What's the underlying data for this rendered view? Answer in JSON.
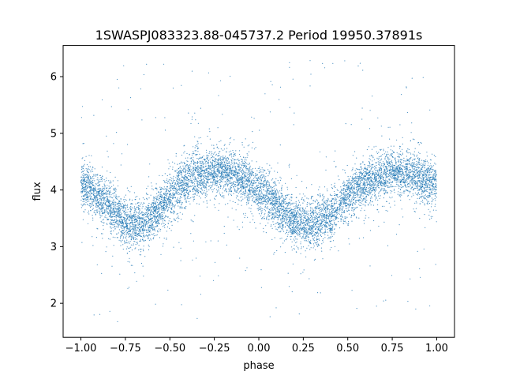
{
  "chart_data": {
    "type": "scatter",
    "title": "1SWASPJ083323.88-045737.2 Period 19950.37891s",
    "xlabel": "phase",
    "ylabel": "flux",
    "xlim": [
      -1.1,
      1.1
    ],
    "ylim": [
      1.4,
      6.55
    ],
    "xticks": [
      -1.0,
      -0.75,
      -0.5,
      -0.25,
      0.0,
      0.25,
      0.5,
      0.75,
      1.0
    ],
    "xtick_labels": [
      "−1.00",
      "−0.75",
      "−0.50",
      "−0.25",
      "0.00",
      "0.25",
      "0.50",
      "0.75",
      "1.00"
    ],
    "yticks": [
      2,
      3,
      4,
      5,
      6
    ],
    "ytick_labels": [
      "2",
      "3",
      "4",
      "5",
      "6"
    ],
    "grid": false,
    "legend": "none",
    "marker_color": "#1f77b4",
    "series": [
      {
        "phase": [
          -1.0,
          -0.95,
          -0.9,
          -0.85,
          -0.8,
          -0.75,
          -0.7,
          -0.65,
          -0.6,
          -0.55,
          -0.5,
          -0.45,
          -0.4,
          -0.35,
          -0.3,
          -0.25,
          -0.2,
          -0.15,
          -0.1,
          -0.05,
          0.0,
          0.05,
          0.1,
          0.15,
          0.2,
          0.25,
          0.3,
          0.35,
          0.4,
          0.45,
          0.5,
          0.55,
          0.6,
          0.65,
          0.7,
          0.75,
          0.8,
          0.85,
          0.9,
          0.95,
          1.0
        ],
        "flux_mean": [
          4.1,
          4.0,
          3.88,
          3.72,
          3.58,
          3.45,
          3.38,
          3.4,
          3.52,
          3.7,
          3.88,
          4.05,
          4.18,
          4.26,
          4.3,
          4.32,
          4.33,
          4.3,
          4.22,
          4.12,
          4.0,
          3.88,
          3.72,
          3.58,
          3.45,
          3.4,
          3.38,
          3.45,
          3.58,
          3.73,
          3.88,
          4.02,
          4.14,
          4.22,
          4.27,
          4.3,
          4.31,
          4.28,
          4.22,
          4.15,
          4.1
        ]
      }
    ]
  }
}
